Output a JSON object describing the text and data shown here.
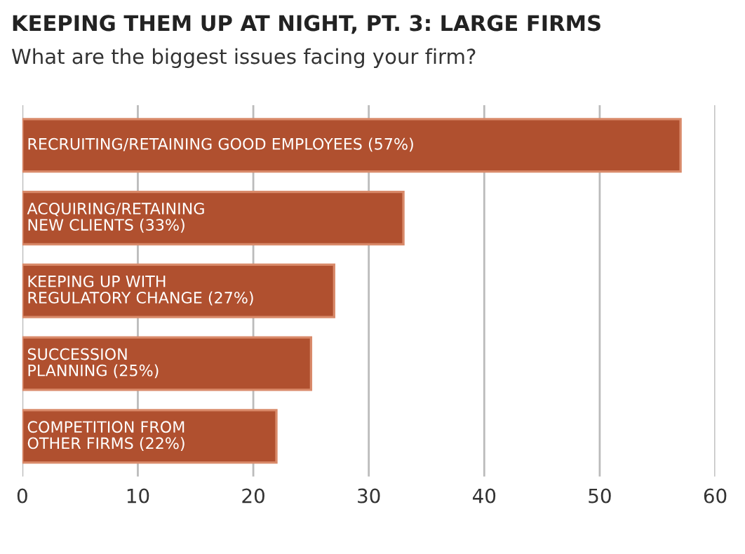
{
  "chart_data": {
    "type": "bar",
    "orientation": "horizontal",
    "title": "KEEPING THEM UP AT NIGHT, PT. 3: LARGE FIRMS",
    "subtitle": "What are the biggest issues facing your firm?",
    "categories": [
      "RECRUITING/RETAINING GOOD EMPLOYEES (57%)",
      "ACQUIRING/RETAINING\nNEW CLIENTS (33%)",
      "KEEPING UP WITH\nREGULATORY CHANGE (27%)",
      "SUCCESSION\nPLANNING (25%)",
      "COMPETITION FROM\nOTHER FIRMS (22%)"
    ],
    "values": [
      57,
      33,
      27,
      25,
      22
    ],
    "color": "#b0502f",
    "xlim": [
      0,
      60
    ],
    "xticks": [
      0,
      10,
      20,
      30,
      40,
      50,
      60
    ],
    "grid": "x"
  }
}
